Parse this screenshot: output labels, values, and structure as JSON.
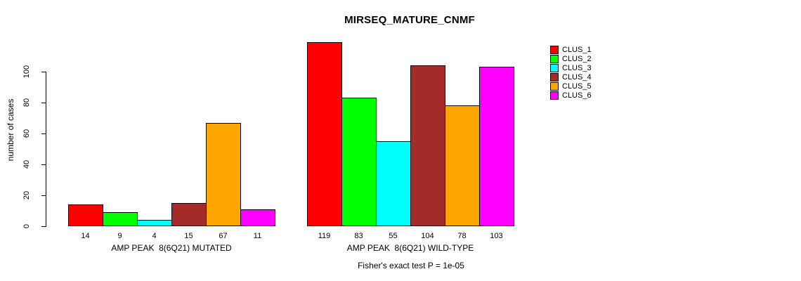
{
  "chart_data": {
    "type": "bar",
    "title": "MIRSEQ_MATURE_CNMF",
    "ylabel": "number of cases",
    "xlabel": "",
    "ylim": [
      0,
      120
    ],
    "yticks": [
      0,
      20,
      40,
      60,
      80,
      100
    ],
    "grid": false,
    "categories": [
      "CLUS_1",
      "CLUS_2",
      "CLUS_3",
      "CLUS_4",
      "CLUS_5",
      "CLUS_6"
    ],
    "colors": [
      "#FF0000",
      "#00FF00",
      "#00FFFF",
      "#A52A2A",
      "#FFA500",
      "#FF00FF"
    ],
    "groups": [
      {
        "label": "AMP PEAK  8(6Q21) MUTATED",
        "values": [
          14,
          9,
          4,
          15,
          67,
          11
        ]
      },
      {
        "label": "AMP PEAK  8(6Q21) WILD-TYPE",
        "values": [
          119,
          83,
          55,
          104,
          78,
          103
        ]
      }
    ],
    "legend": {
      "position": "right",
      "items": [
        {
          "label": "CLUS_1",
          "color": "#FF0000"
        },
        {
          "label": "CLUS_2",
          "color": "#00FF00"
        },
        {
          "label": "CLUS_3",
          "color": "#00FFFF"
        },
        {
          "label": "CLUS_4",
          "color": "#A52A2A"
        },
        {
          "label": "CLUS_5",
          "color": "#FFA500"
        },
        {
          "label": "CLUS_6",
          "color": "#FF00FF"
        }
      ]
    },
    "annotation": "Fisher's exact test P = 1e-05"
  }
}
